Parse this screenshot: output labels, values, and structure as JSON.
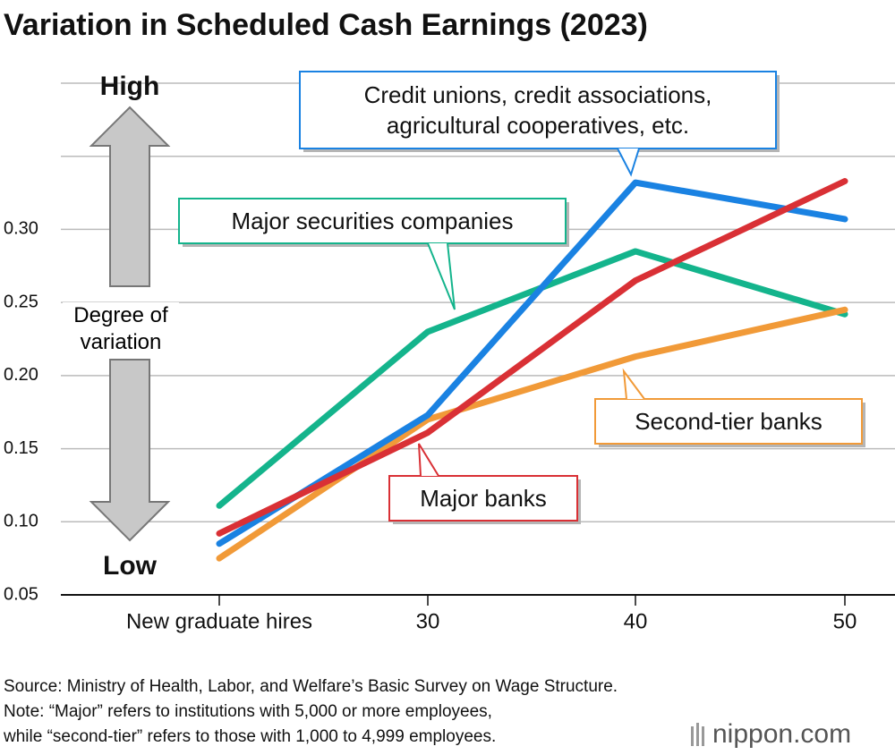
{
  "chart_data": {
    "type": "line",
    "title": "Variation in Scheduled Cash Earnings (2023)",
    "y_label_high": "High",
    "y_label": "Degree of variation",
    "y_label_low": "Low",
    "categories": [
      "New graduate hires",
      "30",
      "40",
      "50"
    ],
    "series": [
      {
        "name": "Major securities companies",
        "color": "#14b48c",
        "values": [
          0.111,
          0.23,
          0.285,
          0.242
        ]
      },
      {
        "name": "Second-tier banks",
        "color": "#f19a38",
        "values": [
          0.075,
          0.17,
          0.213,
          0.245
        ]
      },
      {
        "name": "Credit unions, credit associations, agricultural cooperatives, etc.",
        "color": "#1a82e2",
        "values": [
          0.085,
          0.173,
          0.332,
          0.307
        ]
      },
      {
        "name": "Major banks",
        "color": "#d93035",
        "values": [
          0.092,
          0.161,
          0.265,
          0.333
        ]
      }
    ],
    "ylim": [
      0.05,
      0.4
    ],
    "yticks": [
      0.05,
      {
        "value": 0.1,
        "label": "0.10"
      },
      0.15,
      {
        "value": 0.2,
        "label": "0.20"
      },
      0.25,
      {
        "value": 0.3,
        "label": "0.30"
      }
    ],
    "grid": true,
    "source": "Source: Ministry of Health, Labor, and Welfare’s Basic Survey on Wage Structure.",
    "notes": [
      "Note: “Major” refers to institutions with 5,000 or more employees,",
      "while “second-tier” refers to those with 1,000 to 4,999 employees."
    ],
    "logo": "nippon.com"
  }
}
